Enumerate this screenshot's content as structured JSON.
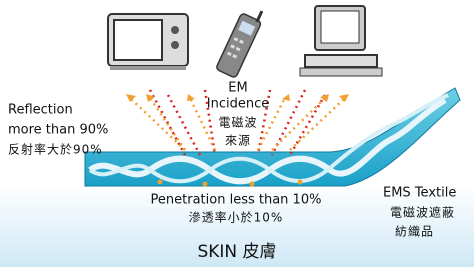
{
  "incidence": {
    "lines": [
      "EM",
      "Incidence",
      "電磁波",
      "來源"
    ]
  },
  "reflection": {
    "lines": [
      "Reflection",
      "more than 90%",
      "反射率大於90%"
    ]
  },
  "penetration": {
    "lines": [
      "Penetration less than 10%",
      "滲透率小於10%"
    ]
  },
  "textile": {
    "lines": [
      "EMS Textile",
      "電磁波遮蔽",
      "紡織品"
    ]
  },
  "skin": {
    "label": "SKIN 皮膚"
  }
}
